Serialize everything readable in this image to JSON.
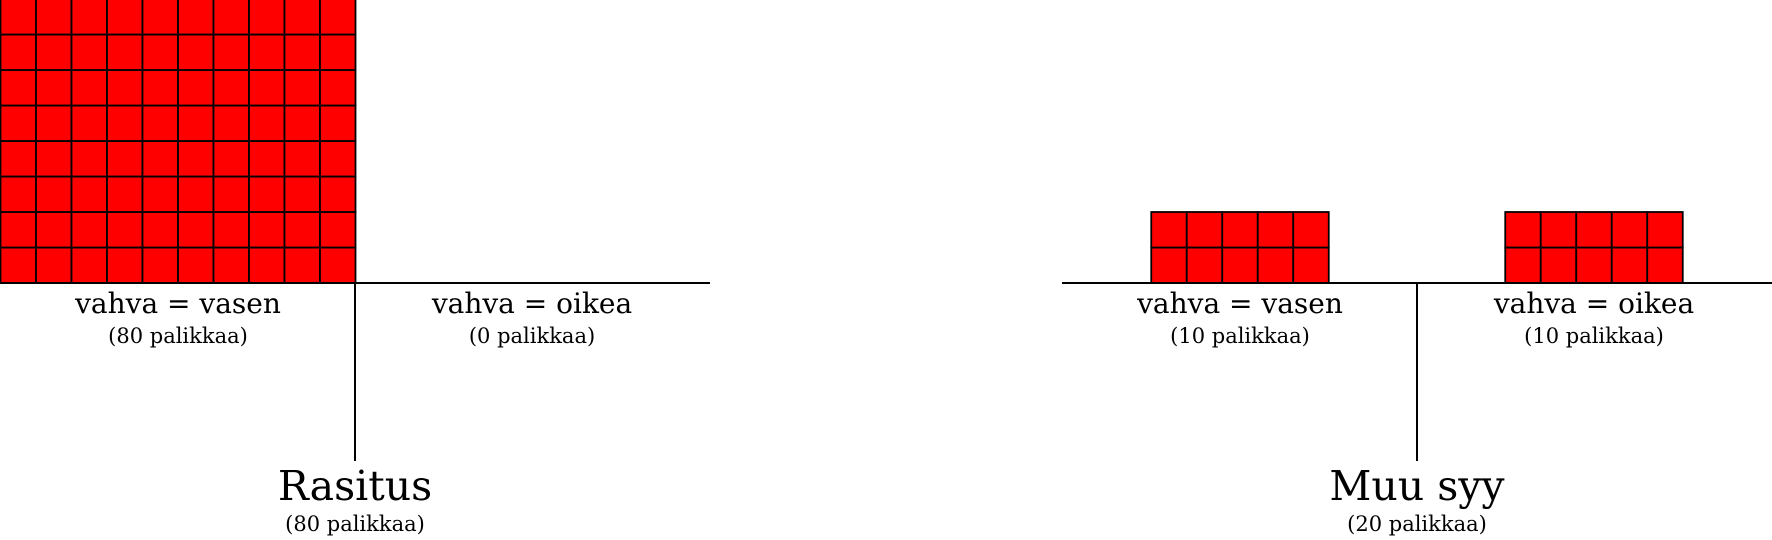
{
  "block_color": "#ff0000",
  "outline_color": "#000000",
  "diagrams": [
    {
      "title": "Rasitus",
      "title_count": "(80 palikkaa)",
      "left": {
        "label": "vahva = vasen",
        "count_label": "(80 palikkaa)",
        "blocks": 80,
        "columns": 10
      },
      "right": {
        "label": "vahva = oikea",
        "count_label": "(0 palikkaa)",
        "blocks": 0,
        "columns": 5
      }
    },
    {
      "title": "Muu syy",
      "title_count": "(20 palikkaa)",
      "left": {
        "label": "vahva = vasen",
        "count_label": "(10 palikkaa)",
        "blocks": 10,
        "columns": 5
      },
      "right": {
        "label": "vahva = oikea",
        "count_label": "(10 palikkaa)",
        "blocks": 10,
        "columns": 5
      }
    }
  ]
}
